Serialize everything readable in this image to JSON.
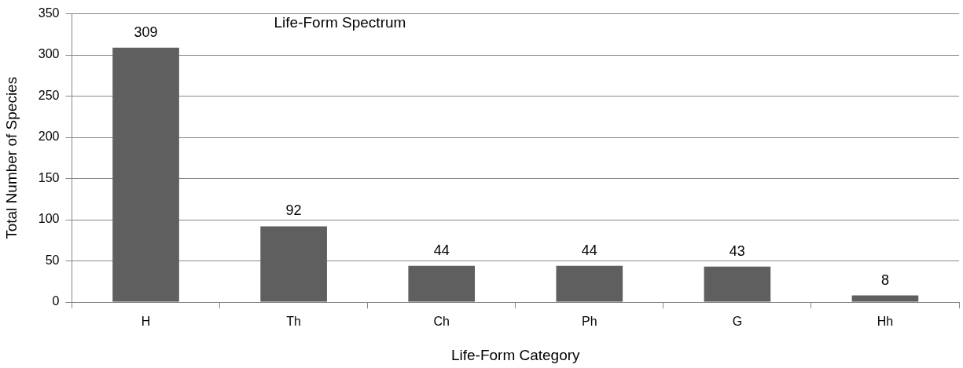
{
  "chart_data": {
    "type": "bar",
    "title": "Life-Form Spectrum",
    "xlabel": "Life-Form Category",
    "ylabel": "Total Number of Species",
    "categories": [
      "H",
      "Th",
      "Ch",
      "Ph",
      "G",
      "Hh"
    ],
    "values": [
      309,
      92,
      44,
      44,
      43,
      8
    ],
    "color": "#5f5f5f",
    "ylim": [
      0,
      350
    ],
    "yticks": [
      0,
      50,
      100,
      150,
      200,
      250,
      300,
      350
    ],
    "grid": "y",
    "data_labels": true,
    "legend": false
  }
}
